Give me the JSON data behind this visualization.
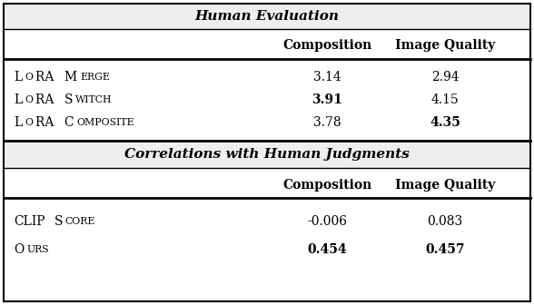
{
  "title1": "Human Evaluation",
  "title2": "Correlations with Human Judgments",
  "col_headers": [
    "Composition",
    "Image Quality"
  ],
  "section1_rows": [
    {
      "label_big": "L",
      "label_small": "O",
      "label_big2": "RA ",
      "label_small2": "M",
      "label_big3": "ERGE",
      "display": [
        [
          "L",
          "oRA "
        ],
        [
          "M",
          "ERGE"
        ]
      ],
      "values": [
        "3.14",
        "2.94"
      ],
      "bold": [
        false,
        false
      ]
    },
    {
      "display": [
        [
          "L",
          "oRA "
        ],
        [
          "S",
          "WITCH"
        ]
      ],
      "values": [
        "3.91",
        "4.15"
      ],
      "bold": [
        true,
        false
      ]
    },
    {
      "display": [
        [
          "L",
          "oRA "
        ],
        [
          "C",
          "OMPOSITE"
        ]
      ],
      "values": [
        "3.78",
        "4.35"
      ],
      "bold": [
        false,
        true
      ]
    }
  ],
  "section2_rows": [
    {
      "display": [
        [
          "CLIP"
        ],
        [
          "S",
          "CORE"
        ]
      ],
      "values": [
        "-0.006",
        "0.083"
      ],
      "bold": [
        false,
        false
      ]
    },
    {
      "display": [
        [
          "O",
          "URS"
        ]
      ],
      "values": [
        "0.454",
        "0.457"
      ],
      "bold": [
        true,
        true
      ]
    }
  ],
  "s1_labels": [
    "LoRA Merge",
    "LoRA Switch",
    "LoRA Composite"
  ],
  "s2_labels": [
    "CLIPScore",
    "Ours"
  ],
  "s1_labels_sc": [
    [
      [
        "L",
        "o",
        "RA ",
        "M",
        "erge"
      ]
    ],
    [
      [
        "L",
        "o",
        "RA ",
        "S",
        "witch"
      ]
    ],
    [
      [
        "L",
        "o",
        "RA ",
        "C",
        "omposite"
      ]
    ]
  ],
  "s2_labels_sc": [
    [
      [
        "CLIP",
        "S",
        "core"
      ]
    ],
    [
      [
        "O",
        "urs"
      ]
    ]
  ],
  "bg_color": "#ffffff",
  "title_bg": "#f0eded",
  "text_color": "#000000"
}
